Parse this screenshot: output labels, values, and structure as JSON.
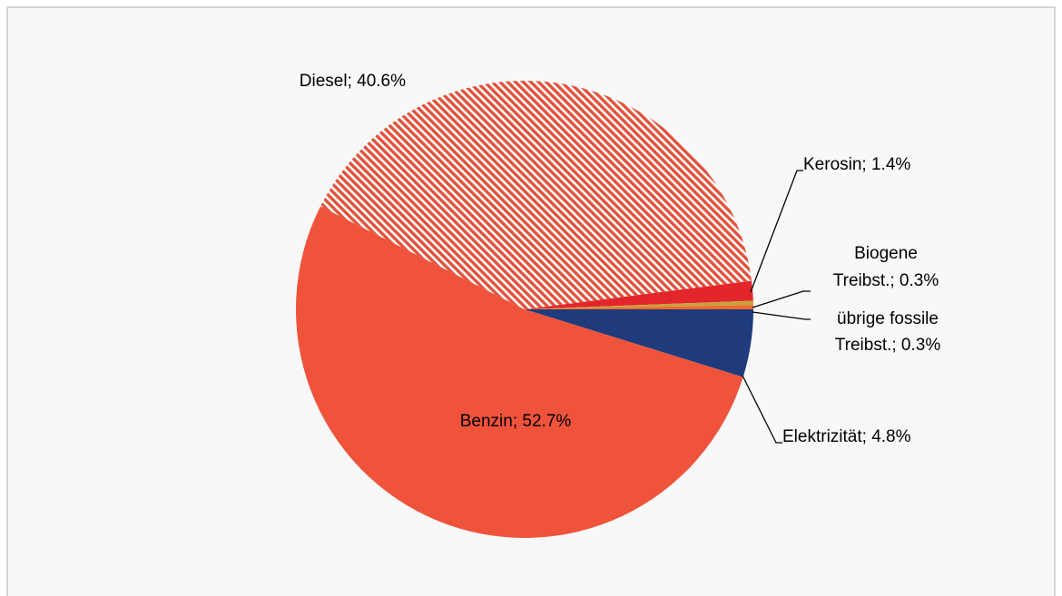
{
  "chart_data": {
    "type": "pie",
    "values": [
      4.8,
      52.7,
      40.6,
      1.4,
      0.3,
      0.3
    ],
    "value_labels": [
      [
        "Elektrizität; 4.8%"
      ],
      [
        "Benzin; 52.7%"
      ],
      [
        "Diesel; 40.6%"
      ],
      [
        "Kerosin; 1.4%"
      ],
      [
        "Biogene",
        "Treibst.; 0.3%"
      ],
      [
        "übrige fossile",
        "Treibst.; 0.3%"
      ]
    ],
    "colors": [
      "#1f3b7c",
      "#f0533b",
      "#e0533c",
      "#e3262b",
      "#c9a23d",
      "#ee6a2e"
    ],
    "hatched": [
      false,
      false,
      true,
      false,
      false,
      false
    ]
  }
}
